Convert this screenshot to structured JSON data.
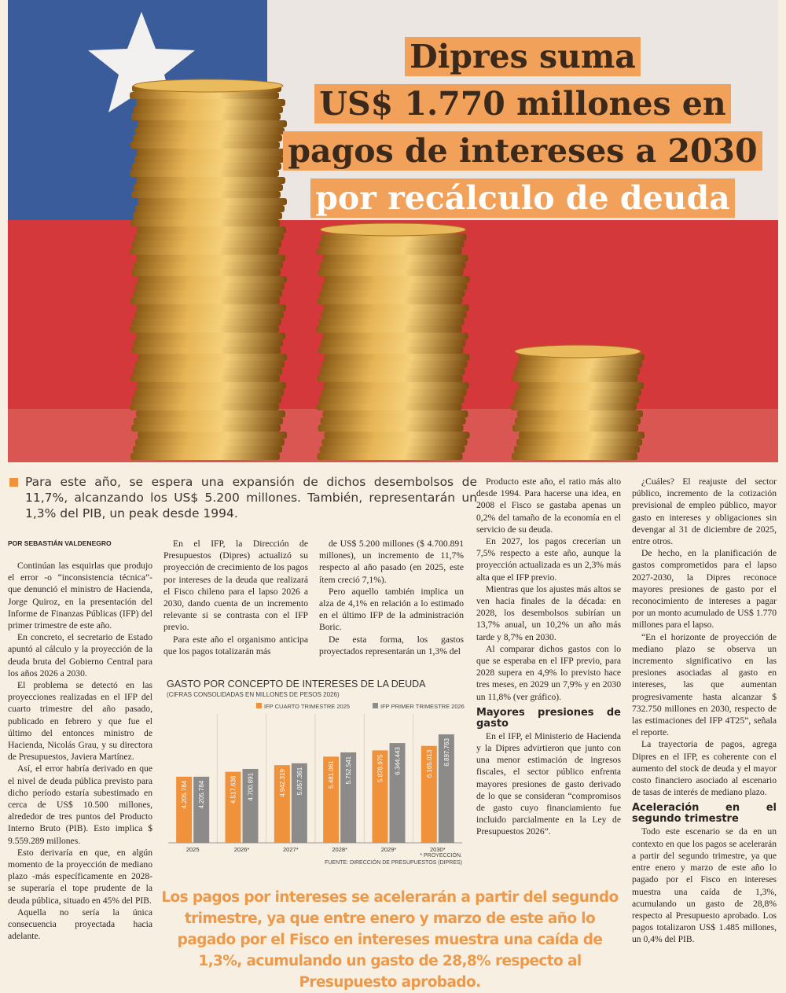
{
  "headline": {
    "lines": [
      "Dipres suma",
      "US$ 1.770 millones en",
      "pagos de intereses a 2030",
      "por recálculo de deuda"
    ]
  },
  "lead": "Para este año, se espera una expansión de dichos desembolsos de 11,7%, alcanzando los US$ 5.200 millones. También, representarán un 1,3% del PIB, un peak desde 1994.",
  "byline": "POR SEBASTIÁN VALDENEGRO",
  "columns": [
    [
      {
        "text": "Continúan las esquirlas que produjo el error -o “inconsistencia técnica”- que denunció el ministro de Hacienda, Jorge Quiroz, en la presentación del Informe de Finanzas Públicas (IFP) del primer trimestre de este año."
      },
      {
        "text": "En concreto, el secretario de Estado apuntó al cálculo y la proyección de la deuda bruta del Gobierno Central para los años 2026 a 2030."
      },
      {
        "text": "El problema se detectó en las proyecciones realizadas en el IFP del cuarto trimestre del año pasado, publicado en febrero y que fue el último del entonces ministro de Hacienda, Nicolás Grau, y su directora de Presupuestos, Javiera Martínez."
      },
      {
        "text": "Así, el error habría derivado en que el nivel de deuda pública previsto para dicho período estaría subestimado en cerca de US$ 10.500 millones, alrededor de tres puntos del Producto Interno Bruto (PIB). Esto implica $ 9.559.289 millones."
      },
      {
        "text": "Esto derivaría en que, en algún momento de la proyección de mediano plazo -más específicamente en 2028- se superaría el tope prudente de la deuda pública, situado en 45% del PIB."
      },
      {
        "text": "Aquella no sería la única consecuencia proyectada hacia adelante."
      }
    ],
    [
      {
        "text": "En el IFP, la Dirección de Presupuestos (Dipres) actualizó su proyección de crecimiento de los pagos por intereses de la deuda que realizará el Fisco chileno para el lapso 2026 a 2030, dando cuenta de un incremento relevante si se contrasta con el IFP previo."
      },
      {
        "text": "Para este año el organismo anticipa que los pagos totalizarán más"
      }
    ],
    [
      {
        "text": "de US$ 5.200 millones ($ 4.700.891 millones), un incremento de 11,7% respecto al año pasado (en 2025, este ítem creció 7,1%)."
      },
      {
        "text": "Pero aquello también implica un alza de 4,1% en relación a lo estimado en el último IFP de la administración Boric."
      },
      {
        "text": "De esta forma, los gastos proyectados representarán un 1,3% del"
      }
    ],
    [
      {
        "text": "Producto este año, el ratio más alto desde 1994. Para hacerse una idea, en 2008 el Fisco se gastaba apenas un 0,2% del tamaño de la economía en el servicio de su deuda."
      },
      {
        "text": "En 2027, los pagos crecerían un 7,5% respecto a este año, aunque la proyección actualizada es un 2,3% más alta que el IFP previo."
      },
      {
        "text": "Mientras que los ajustes más altos se ven hacia finales de la década: en 2028, los desembolsos subirían un 13,7% anual, un 10,2% un año más tarde y 8,7% en 2030."
      },
      {
        "text": "Al comparar dichos gastos con lo que se esperaba en el IFP previo, para 2028 supera en 4,9% lo previsto hace tres meses, en 2029 un 7,9% y en 2030 un 11,8% (ver gráfico)."
      },
      {
        "subhead": "Mayores presiones de gasto"
      },
      {
        "text": "En el IFP, el Ministerio de Hacienda y la Dipres advirtieron que junto con una menor estimación de ingresos fiscales, el sector público enfrenta mayores presiones de gasto derivado de lo que se consideran “compromisos de gasto cuyo financiamiento fue incluido parcialmente en la Ley de Presupuestos 2026”."
      }
    ],
    [
      {
        "text": "¿Cuáles? El reajuste del sector público, incremento de la cotización previsional de empleo público, mayor gasto en intereses y obligaciones sin devengar al 31 de diciembre de 2025, entre otros."
      },
      {
        "text": "De hecho, en la planificación de gastos comprometidos para el lapso 2027-2030, la Dipres reconoce mayores presiones de gasto por el reconocimiento de intereses a pagar por un monto acumulado de US$ 1.770 millones para el lapso."
      },
      {
        "text": "“En el horizonte de proyección de mediano plazo se observa un incremento significativo en las presiones asociadas al gasto en intereses, las que aumentan progresivamente hasta alcanzar $ 732.750 millones en 2030, respecto de las estimaciones del IFP 4T25”, señala el reporte."
      },
      {
        "text": "La trayectoria de pagos, agrega Dipres en el IFP, es coherente con el aumento del stock de deuda y el mayor costo financiero asociado al escenario de tasas de interés de mediano plazo."
      },
      {
        "subhead": "Aceleración en el segundo trimestre"
      },
      {
        "text": "Todo este escenario se da en un contexto en que los pagos se acelerarán a partir del segundo trimestre, ya que entre enero y marzo de este año lo pagado por el Fisco en intereses muestra una caída de 1,3%, acumulando un gasto de 28,8% respecto al Presupuesto aprobado. Los pagos totalizaron US$ 1.485 millones, un 0,4% del PIB."
      }
    ]
  ],
  "chart_data": {
    "type": "bar",
    "title": "GASTO POR CONCEPTO DE INTERESES DE LA DEUDA",
    "subtitle": "(CIFRAS CONSOLIDADAS EN MILLONES DE PESOS 2026)",
    "categories": [
      "2025",
      "2026*",
      "2027*",
      "2028*",
      "2029*",
      "2030*"
    ],
    "series": [
      {
        "name": "IFP CUARTO TRIMESTRE 2025",
        "color": "#f0913c",
        "values": [
          4205784,
          4517636,
          4942319,
          5481061,
          5878975,
          6165013
        ],
        "value_labels": [
          "4.205.784",
          "4.517.636",
          "4.942.319",
          "5.481.061",
          "5.878.975",
          "6.165.013"
        ]
      },
      {
        "name": "IFP PRIMER TRIMESTRE 2026",
        "color": "#8c8b8a",
        "values": [
          4205784,
          4700891,
          5057361,
          5752541,
          6344443,
          6897763
        ],
        "value_labels": [
          "4.205.784",
          "4.700.891",
          "5.057.361",
          "5.752.541",
          "6.344.443",
          "6.897.763"
        ]
      }
    ],
    "ylim": [
      0,
      7200000
    ],
    "notes": [
      "* PROYECCIÓN.",
      "FUENTE: DIRECCIÓN DE PRESUPUESTOS (DIPRES)"
    ]
  },
  "pull_quote": "Los pagos por intereses se acelerarán a partir del segundo trimestre, ya que entre enero y marzo de este año lo pagado por el Fisco en intereses muestra una caída de 1,3%, acumulando un gasto de 28,8% respecto al Presupuesto aprobado."
}
